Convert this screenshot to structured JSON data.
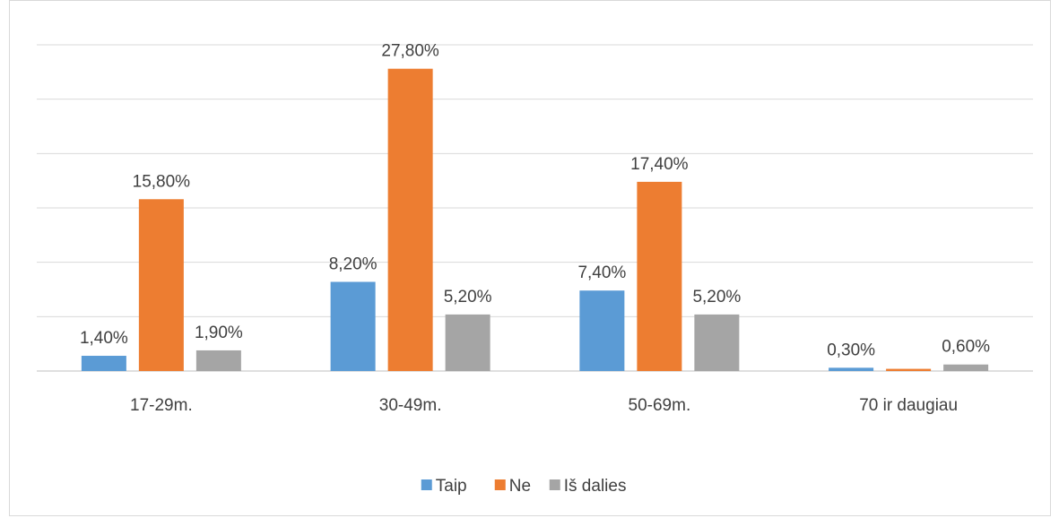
{
  "chart_data": {
    "type": "bar",
    "title": "",
    "xlabel": "",
    "ylabel": "",
    "ylim": [
      0,
      30
    ],
    "grid": true,
    "legend_position": "bottom",
    "categories": [
      "17-29m.",
      "30-49m.",
      "50-69m.",
      "70 ir daugiau"
    ],
    "series": [
      {
        "name": "Taip",
        "color": "#5b9bd5",
        "values": [
          1.4,
          8.2,
          7.4,
          0.3
        ],
        "labels": [
          "1,40%",
          "8,20%",
          "7,40%",
          "0,30%"
        ]
      },
      {
        "name": "Ne",
        "color": "#ed7d31",
        "values": [
          15.8,
          27.8,
          17.4,
          0.2
        ],
        "labels": [
          "15,80%",
          "27,80%",
          "17,40%",
          ""
        ]
      },
      {
        "name": "Iš dalies",
        "color": "#a5a5a5",
        "values": [
          1.9,
          5.2,
          5.2,
          0.6
        ],
        "labels": [
          "1,90%",
          "5,20%",
          "5,20%",
          "0,60%"
        ]
      }
    ]
  }
}
